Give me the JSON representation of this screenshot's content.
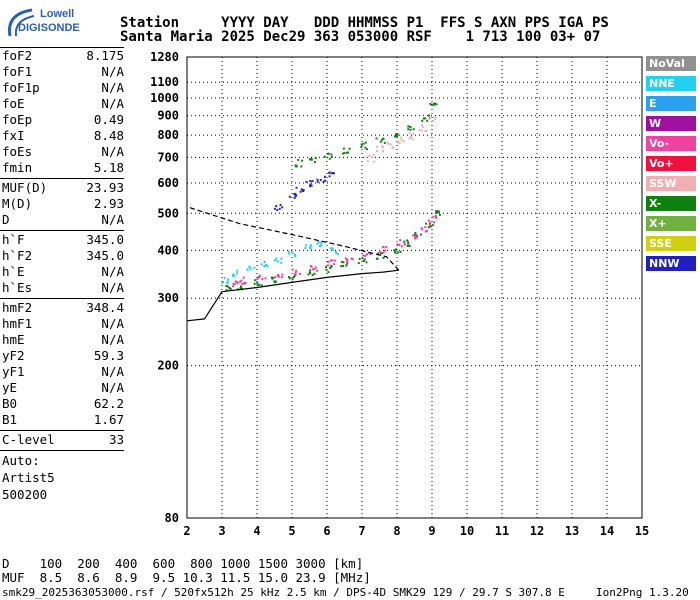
{
  "logo": {
    "line1": "Lowell",
    "line2": "DIGISONDE"
  },
  "header": {
    "line1": "Station     YYYY DAY   DDD HHMMSS P1  FFS S AXN PPS IGA PS",
    "line2": "Santa Maria 2025 Dec29 363 053000 RSF    1 713 100 03+ 07"
  },
  "params": {
    "group1": [
      {
        "k": "foF2",
        "v": "8.175"
      },
      {
        "k": "foF1",
        "v": "N/A"
      },
      {
        "k": "foF1p",
        "v": "N/A"
      },
      {
        "k": "foE",
        "v": "N/A"
      },
      {
        "k": "foEp",
        "v": "0.49"
      },
      {
        "k": "fxI",
        "v": "8.48"
      },
      {
        "k": "foEs",
        "v": "N/A"
      },
      {
        "k": "fmin",
        "v": "5.18"
      }
    ],
    "group2": [
      {
        "k": "MUF(D)",
        "v": "23.93"
      },
      {
        "k": "M(D)",
        "v": "2.93"
      },
      {
        "k": "D",
        "v": "N/A"
      }
    ],
    "group3": [
      {
        "k": "h`F",
        "v": "345.0"
      },
      {
        "k": "h`F2",
        "v": "345.0"
      },
      {
        "k": "h`E",
        "v": "N/A"
      },
      {
        "k": "h`Es",
        "v": "N/A"
      }
    ],
    "group4": [
      {
        "k": "hmF2",
        "v": "348.4"
      },
      {
        "k": "hmF1",
        "v": "N/A"
      },
      {
        "k": "hmE",
        "v": "N/A"
      },
      {
        "k": "yF2",
        "v": "59.3"
      },
      {
        "k": "yF1",
        "v": "N/A"
      },
      {
        "k": "yE",
        "v": "N/A"
      },
      {
        "k": "B0",
        "v": "62.2"
      },
      {
        "k": "B1",
        "v": "1.67"
      }
    ],
    "clevel": {
      "k": "C-level",
      "v": "33"
    },
    "auto": [
      "Auto:",
      "Artist5",
      "500200"
    ]
  },
  "legend": [
    {
      "label": "NoVal",
      "color": "#909090"
    },
    {
      "label": "NNE",
      "color": "#22d0f0"
    },
    {
      "label": "E",
      "color": "#2aa0f0"
    },
    {
      "label": "W",
      "color": "#a010a0"
    },
    {
      "label": "Vo-",
      "color": "#f040a0"
    },
    {
      "label": "Vo+",
      "color": "#f01040"
    },
    {
      "label": "SSW",
      "color": "#f0b0b0"
    },
    {
      "label": "X-",
      "color": "#108010"
    },
    {
      "label": "X+",
      "color": "#70b040"
    },
    {
      "label": "SSE",
      "color": "#d0d010"
    },
    {
      "label": "NNW",
      "color": "#2020c0"
    }
  ],
  "bottom": {
    "d_row": "D    100  200  400  600  800 1000 1500 3000 [km]",
    "muf_row": "MUF  8.5  8.6  8.9  9.5 10.3 11.5 15.0 23.9 [MHz]",
    "footer": "smk29_2025363053000.rsf / 520fx512h 25 kHz 2.5 km / DPS-4D SMK29 129 / 29.7 S 307.8 E",
    "version": "Ion2Png 1.3.20"
  },
  "chart_data": {
    "type": "scatter",
    "title": "",
    "xlabel": "",
    "ylabel": "",
    "xlim": [
      2,
      15
    ],
    "ylim": [
      80,
      1280
    ],
    "y_scale": "log",
    "x_ticks": [
      2,
      3,
      4,
      5,
      6,
      7,
      8,
      9,
      10,
      11,
      12,
      13,
      14,
      15
    ],
    "y_ticks": [
      80,
      200,
      300,
      400,
      500,
      600,
      700,
      800,
      900,
      1000,
      1100,
      1280
    ],
    "grid": true,
    "series": [
      {
        "name": "X-",
        "x": [
          3.2,
          3.5,
          4,
          4.5,
          5,
          5.5,
          6,
          6.5,
          7,
          7.5,
          8,
          8.3,
          8.6,
          8.9,
          9.1
        ],
        "y": [
          320,
          324,
          330,
          336,
          344,
          352,
          360,
          368,
          378,
          390,
          405,
          420,
          440,
          465,
          500
        ]
      },
      {
        "name": "Vo-",
        "x": [
          3.3,
          3.6,
          4.1,
          4.6,
          5.1,
          5.6,
          6.1,
          6.6,
          7.1,
          7.6,
          8.1,
          8.5,
          8.8,
          9
        ],
        "y": [
          330,
          335,
          340,
          347,
          355,
          363,
          372,
          380,
          392,
          404,
          420,
          440,
          460,
          485
        ]
      },
      {
        "name": "NNE",
        "x": [
          3.1,
          3.4,
          3.8,
          4.2,
          4.6,
          5,
          5.4,
          5.8,
          6.2
        ],
        "y": [
          335,
          350,
          360,
          370,
          380,
          395,
          410,
          420,
          400
        ]
      },
      {
        "name": "X-",
        "x": [
          5.2,
          5.6,
          6,
          6.5,
          7,
          7.5,
          8,
          8.4,
          8.8,
          9
        ],
        "y": [
          680,
          695,
          712,
          730,
          755,
          780,
          810,
          845,
          890,
          960
        ]
      },
      {
        "name": "SSW",
        "x": [
          7.2,
          7.5,
          7.8,
          8.1,
          8.4,
          8.7,
          9
        ],
        "y": [
          700,
          740,
          760,
          780,
          800,
          840,
          880
        ]
      },
      {
        "name": "NNW",
        "x": [
          4.6,
          5,
          5.2,
          5.5,
          5.8,
          6.1
        ],
        "y": [
          520,
          560,
          580,
          600,
          620,
          640
        ]
      }
    ],
    "profile_curve": {
      "x": [
        3,
        4,
        5,
        6,
        7,
        7.6,
        8.05,
        7.7,
        6.5,
        5,
        3.5,
        2
      ],
      "y": [
        312,
        320,
        330,
        340,
        348,
        351,
        355,
        385,
        410,
        440,
        470,
        520
      ]
    }
  }
}
